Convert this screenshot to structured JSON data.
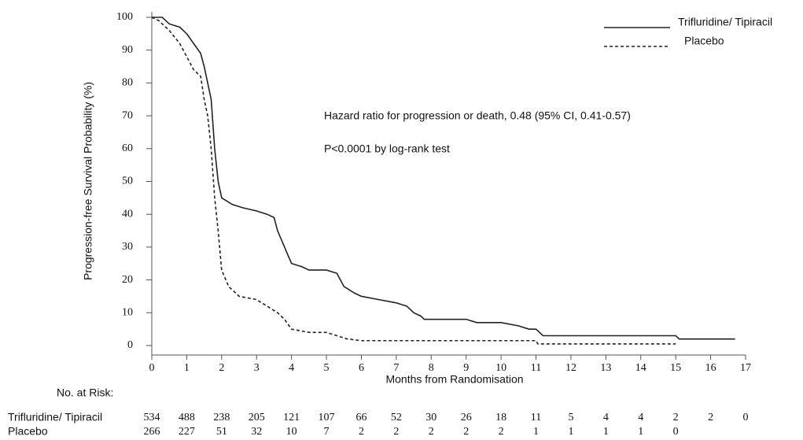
{
  "chart_data": {
    "type": "line",
    "x_label": "Months from Randomisation",
    "y_label": "Progression-free Survival Probability (%)",
    "xlim": [
      0,
      17
    ],
    "xticks": [
      0,
      1,
      2,
      3,
      4,
      5,
      6,
      7,
      8,
      9,
      10,
      11,
      12,
      13,
      14,
      15,
      16,
      17
    ],
    "ylim": [
      0,
      100
    ],
    "yticks": [
      0,
      10,
      20,
      30,
      40,
      50,
      60,
      70,
      80,
      90,
      100
    ],
    "legend": "top-right",
    "annotations": [
      "Hazard ratio for progression or death, 0.48 (95% CI, 0.41-0.57)",
      "P<0.0001  by log-rank test"
    ],
    "series": [
      {
        "name": "Trifluridine/ Tipiracil",
        "color": "#222222",
        "dash": "solid",
        "x": [
          0,
          0.3,
          0.5,
          0.8,
          1.0,
          1.2,
          1.4,
          1.5,
          1.6,
          1.7,
          1.8,
          1.9,
          2.0,
          2.3,
          2.6,
          3.0,
          3.3,
          3.5,
          3.6,
          3.8,
          4.0,
          4.3,
          4.5,
          5.0,
          5.3,
          5.5,
          5.8,
          6.0,
          6.5,
          7.0,
          7.3,
          7.5,
          7.7,
          7.8,
          8.5,
          9.0,
          9.3,
          10.0,
          10.5,
          10.8,
          11.0,
          11.2,
          12.0,
          13.0,
          14.0,
          15.0,
          15.1,
          16.0,
          16.7
        ],
        "values": [
          100,
          100,
          98,
          97,
          95,
          92,
          89,
          85,
          80,
          75,
          60,
          50,
          45,
          43,
          42,
          41,
          40,
          39,
          35,
          30,
          25,
          24,
          23,
          23,
          22,
          18,
          16,
          15,
          14,
          13,
          12,
          10,
          9,
          8,
          8,
          8,
          7,
          7,
          6,
          5,
          5,
          3,
          3,
          3,
          3,
          3,
          2,
          2,
          2
        ]
      },
      {
        "name": "Placebo",
        "color": "#222222",
        "dash": "dashed",
        "x": [
          0,
          0.2,
          0.5,
          0.8,
          1.0,
          1.2,
          1.4,
          1.5,
          1.6,
          1.7,
          1.8,
          1.9,
          2.0,
          2.2,
          2.5,
          3.0,
          3.3,
          3.6,
          3.8,
          4.0,
          4.5,
          5.0,
          5.3,
          5.6,
          6.0,
          8.0,
          10.0,
          11.0,
          11.05,
          15.0
        ],
        "values": [
          100,
          99,
          96,
          92,
          88,
          84,
          82,
          75,
          70,
          60,
          45,
          35,
          23,
          18,
          15,
          14,
          12,
          10,
          8,
          5,
          4,
          4,
          3,
          2,
          1.5,
          1.5,
          1.5,
          1.5,
          0.5,
          0.5
        ]
      }
    ],
    "risk_table": {
      "title": "No. at Risk:",
      "rows": [
        {
          "name": "Trifluridine/ Tipiracil",
          "values": [
            534,
            488,
            238,
            205,
            121,
            107,
            66,
            52,
            30,
            26,
            18,
            11,
            5,
            4,
            4,
            2,
            2,
            0
          ]
        },
        {
          "name": "Placebo",
          "values": [
            266,
            227,
            51,
            32,
            10,
            7,
            2,
            2,
            2,
            2,
            2,
            1,
            1,
            1,
            1,
            0
          ]
        }
      ]
    }
  }
}
